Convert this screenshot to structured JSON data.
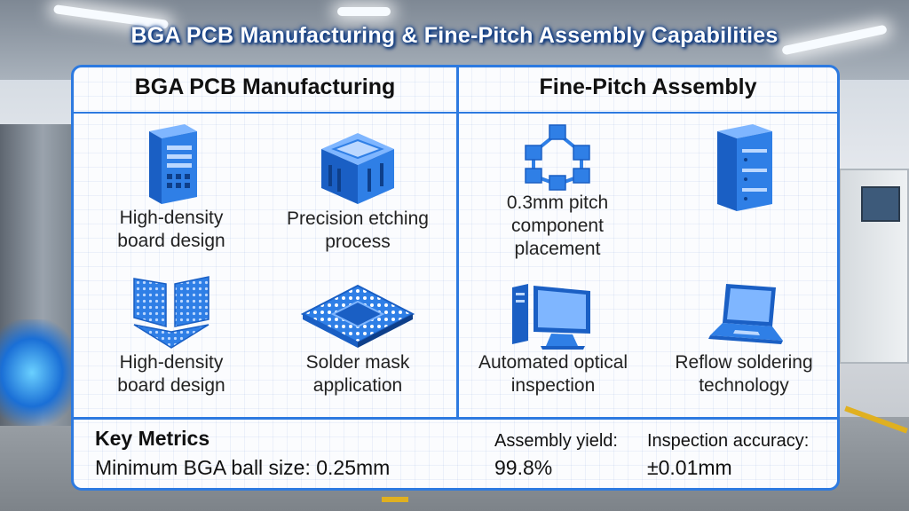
{
  "title": "BGA PCB Manufacturing & Fine-Pitch Assembly Capabilities",
  "left_column": {
    "title": "BGA PCB Manufacturing",
    "items": [
      {
        "label_line1": "High-density",
        "label_line2": "board design",
        "icon": "server-tower-icon"
      },
      {
        "label_line1": "Precision etching",
        "label_line2": "process",
        "icon": "chip-block-icon"
      },
      {
        "label_line1": "High-density",
        "label_line2": "board design",
        "icon": "grid-panels-icon"
      },
      {
        "label_line1": "Solder mask",
        "label_line2": "application",
        "icon": "bga-chip-icon"
      }
    ]
  },
  "right_column": {
    "title": "Fine-Pitch Assembly",
    "items": [
      {
        "label_line1": "0.3mm pitch",
        "label_line2": "component",
        "label_line3": "placement",
        "icon": "network-nodes-icon"
      },
      {
        "label_line1": "",
        "label_line2": "",
        "icon": "database-server-icon"
      },
      {
        "label_line1": "Automated optical",
        "label_line2": "inspection",
        "icon": "computer-monitor-icon"
      },
      {
        "label_line1": "Reflow soldering",
        "label_line2": "technology",
        "icon": "laptop-icon"
      }
    ]
  },
  "metrics": {
    "title": "Key Metrics",
    "min_ball_size": "Minimum BGA ball size: 0.25mm",
    "yield_label": "Assembly yield:",
    "yield_value": "99.8%",
    "accuracy_label": "Inspection accuracy:",
    "accuracy_value": "±0.01mm"
  },
  "colors": {
    "accent": "#2d7ae0",
    "icon_fill": "#2f7fe6",
    "icon_dark": "#1a5fc4",
    "icon_light": "#7fb6ff"
  }
}
